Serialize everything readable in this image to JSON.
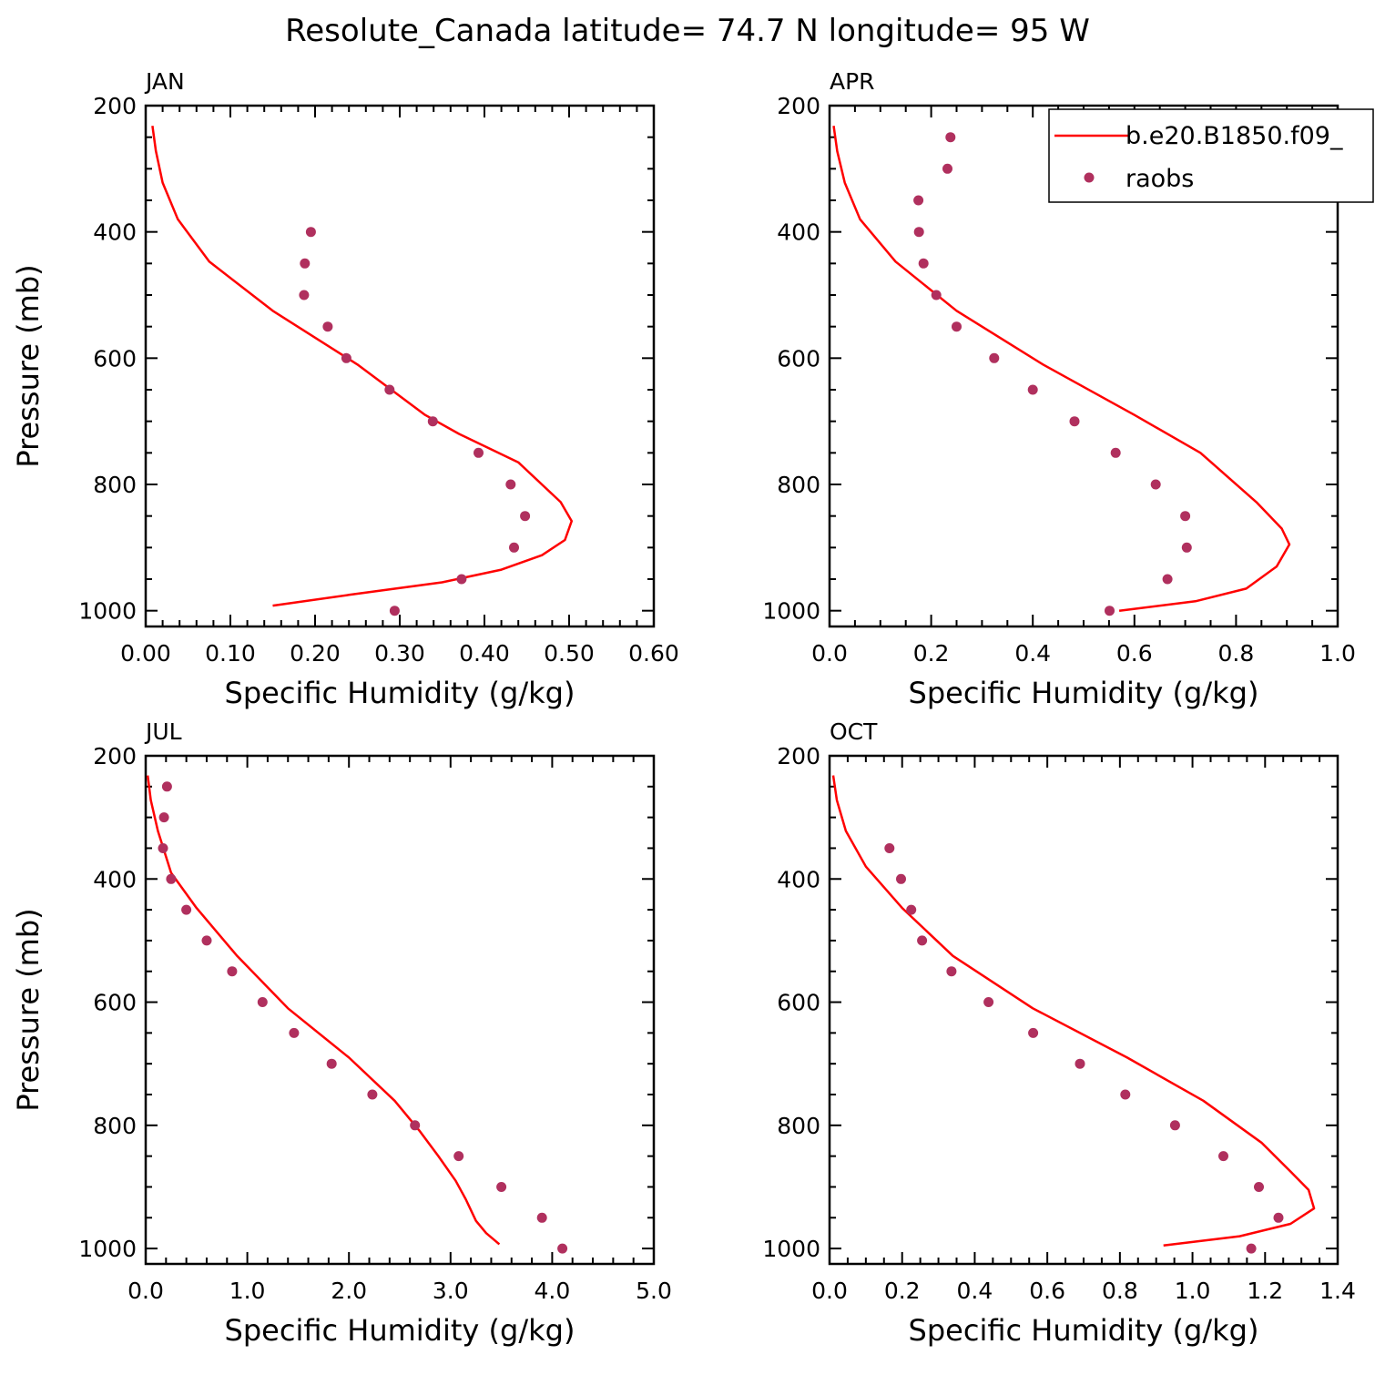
{
  "figure": {
    "title": "Resolute_Canada  latitude= 74.7 N longitude= 95 W"
  },
  "legend": {
    "entries": [
      {
        "label": "b.e20.B1850.f09_",
        "kind": "line",
        "color": "#ff0000"
      },
      {
        "label": "raobs",
        "kind": "marker",
        "color": "#b0305e"
      }
    ]
  },
  "colors": {
    "model": "#ff0000",
    "obs": "#b0305e"
  },
  "chart_data": [
    {
      "type": "line",
      "panel": "JAN",
      "xlabel": "Specific Humidity (g/kg)",
      "ylabel": "Pressure (mb)",
      "xlim": [
        0,
        0.6
      ],
      "ylim": [
        1025,
        200
      ],
      "xticks": [
        0,
        0.1,
        0.2,
        0.3,
        0.4,
        0.5,
        0.6
      ],
      "xtick_labels": [
        "0.00",
        "0.10",
        "0.20",
        "0.30",
        "0.40",
        "0.50",
        "0.60"
      ],
      "yticks": [
        200,
        400,
        600,
        800,
        1000
      ],
      "ytick_labels": [
        "200",
        "400",
        "600",
        "800",
        "1000"
      ],
      "series": [
        {
          "name": "b.e20.B1850.f09_",
          "style": "line",
          "x": [
            0.008,
            0.012,
            0.02,
            0.038,
            0.075,
            0.15,
            0.25,
            0.33,
            0.37,
            0.44,
            0.49,
            0.503,
            0.495,
            0.468,
            0.42,
            0.35,
            0.24,
            0.15
          ],
          "y": [
            232,
            272,
            322,
            380,
            447,
            525,
            610,
            690,
            720,
            765,
            828,
            858,
            888,
            912,
            935,
            955,
            975,
            992
          ]
        },
        {
          "name": "raobs",
          "style": "marker",
          "x": [
            0.195,
            0.188,
            0.187,
            0.215,
            0.237,
            0.288,
            0.339,
            0.393,
            0.431,
            0.448,
            0.435,
            0.373,
            0.294
          ],
          "y": [
            400,
            450,
            500,
            550,
            600,
            650,
            700,
            750,
            800,
            850,
            900,
            950,
            1000
          ]
        }
      ]
    },
    {
      "type": "line",
      "panel": "APR",
      "xlabel": "Specific Humidity (g/kg)",
      "ylabel": "",
      "xlim": [
        0,
        1.0
      ],
      "ylim": [
        1025,
        200
      ],
      "xticks": [
        0,
        0.2,
        0.4,
        0.6,
        0.8,
        1.0
      ],
      "xtick_labels": [
        "0.0",
        "0.2",
        "0.4",
        "0.6",
        "0.8",
        "1.0"
      ],
      "yticks": [
        200,
        400,
        600,
        800,
        1000
      ],
      "ytick_labels": [
        "200",
        "400",
        "600",
        "800",
        "1000"
      ],
      "legend": true,
      "series": [
        {
          "name": "b.e20.B1850.f09_",
          "style": "line",
          "x": [
            0.008,
            0.015,
            0.03,
            0.06,
            0.13,
            0.25,
            0.42,
            0.6,
            0.73,
            0.84,
            0.89,
            0.905,
            0.88,
            0.82,
            0.72,
            0.57
          ],
          "y": [
            232,
            272,
            322,
            380,
            447,
            525,
            610,
            690,
            750,
            828,
            870,
            895,
            930,
            965,
            985,
            1000
          ]
        },
        {
          "name": "raobs",
          "style": "marker",
          "x": [
            0.238,
            0.232,
            0.175,
            0.176,
            0.185,
            0.21,
            0.25,
            0.324,
            0.4,
            0.482,
            0.563,
            0.642,
            0.7,
            0.703,
            0.665,
            0.551
          ],
          "y": [
            250,
            300,
            350,
            400,
            450,
            500,
            550,
            600,
            650,
            700,
            750,
            800,
            850,
            900,
            950,
            1000
          ]
        }
      ]
    },
    {
      "type": "line",
      "panel": "JUL",
      "xlabel": "Specific Humidity (g/kg)",
      "ylabel": "Pressure (mb)",
      "xlim": [
        0,
        5.0
      ],
      "ylim": [
        1025,
        200
      ],
      "xticks": [
        0,
        1,
        2,
        3,
        4,
        5
      ],
      "xtick_labels": [
        "0.0",
        "1.0",
        "2.0",
        "3.0",
        "4.0",
        "5.0"
      ],
      "yticks": [
        200,
        400,
        600,
        800,
        1000
      ],
      "ytick_labels": [
        "200",
        "400",
        "600",
        "800",
        "1000"
      ],
      "series": [
        {
          "name": "b.e20.B1850.f09_",
          "style": "line",
          "x": [
            0.02,
            0.05,
            0.12,
            0.25,
            0.5,
            0.9,
            1.4,
            2.0,
            2.45,
            2.7,
            2.88,
            3.05,
            3.15,
            3.25,
            3.35,
            3.48
          ],
          "y": [
            232,
            272,
            322,
            390,
            447,
            525,
            610,
            690,
            760,
            810,
            850,
            890,
            920,
            955,
            975,
            993
          ]
        },
        {
          "name": "raobs",
          "style": "marker",
          "x": [
            0.21,
            0.18,
            0.17,
            0.25,
            0.4,
            0.6,
            0.85,
            1.15,
            1.46,
            1.83,
            2.23,
            2.65,
            3.08,
            3.5,
            3.9,
            4.1
          ],
          "y": [
            250,
            300,
            350,
            400,
            450,
            500,
            550,
            600,
            650,
            700,
            750,
            800,
            850,
            900,
            950,
            1000
          ]
        }
      ]
    },
    {
      "type": "line",
      "panel": "OCT",
      "xlabel": "Specific Humidity (g/kg)",
      "ylabel": "",
      "xlim": [
        0,
        1.4
      ],
      "ylim": [
        1025,
        200
      ],
      "xticks": [
        0,
        0.2,
        0.4,
        0.6,
        0.8,
        1.0,
        1.2,
        1.4
      ],
      "xtick_labels": [
        "0.0",
        "0.2",
        "0.4",
        "0.6",
        "0.8",
        "1.0",
        "1.2",
        "1.4"
      ],
      "yticks": [
        200,
        400,
        600,
        800,
        1000
      ],
      "ytick_labels": [
        "200",
        "400",
        "600",
        "800",
        "1000"
      ],
      "series": [
        {
          "name": "b.e20.B1850.f09_",
          "style": "line",
          "x": [
            0.01,
            0.02,
            0.045,
            0.1,
            0.2,
            0.34,
            0.56,
            0.82,
            1.03,
            1.19,
            1.27,
            1.32,
            1.335,
            1.27,
            1.13,
            0.92
          ],
          "y": [
            232,
            272,
            322,
            380,
            447,
            525,
            610,
            690,
            760,
            828,
            875,
            905,
            935,
            960,
            980,
            995
          ]
        },
        {
          "name": "raobs",
          "style": "marker",
          "x": [
            0.165,
            0.197,
            0.225,
            0.255,
            0.336,
            0.438,
            0.561,
            0.69,
            0.815,
            0.952,
            1.085,
            1.183,
            1.237,
            1.162
          ],
          "y": [
            350,
            400,
            450,
            500,
            550,
            600,
            650,
            700,
            750,
            800,
            850,
            900,
            950,
            1000
          ]
        }
      ]
    }
  ]
}
